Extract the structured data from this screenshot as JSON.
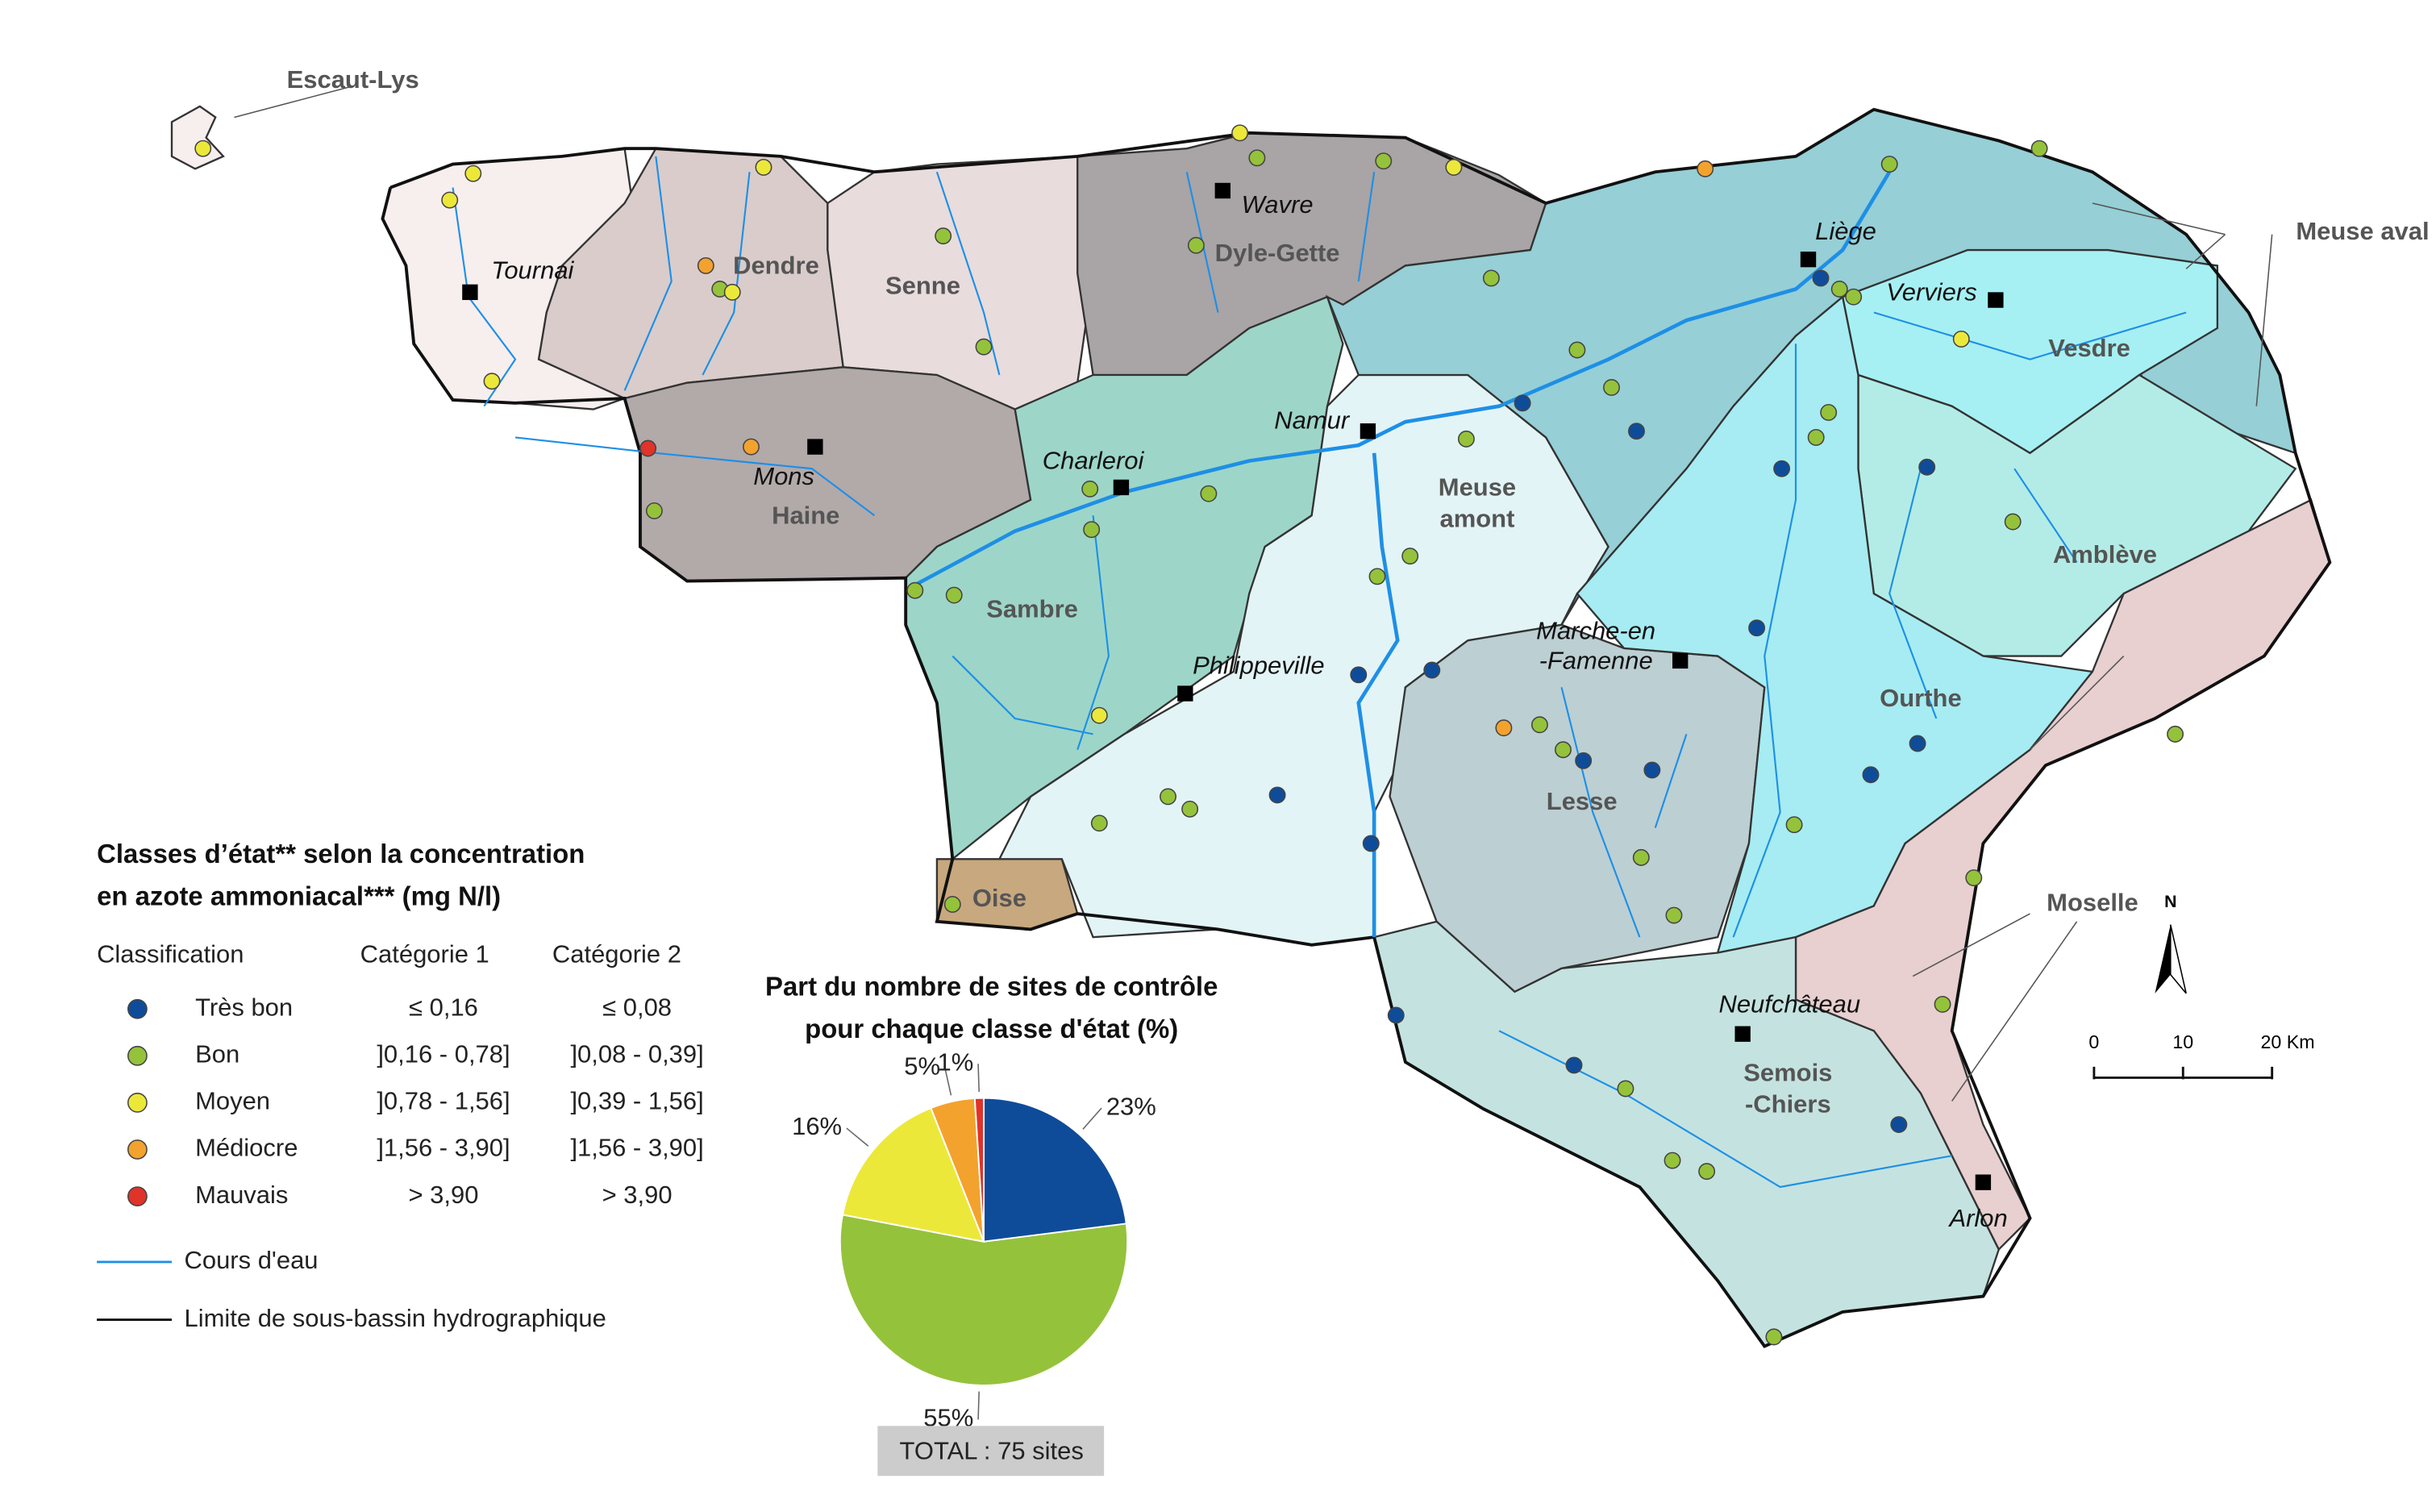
{
  "map": {
    "basins": [
      [
        "Escaut-Lys"
      ],
      [
        "Dendre"
      ],
      [
        "Senne"
      ],
      [
        "Dyle-Gette"
      ],
      [
        "Meuse aval"
      ],
      [
        "Vesdre"
      ],
      [
        "Amblève"
      ],
      [
        "Ourthe"
      ],
      [
        "Lesse"
      ],
      [
        "Meuse",
        "amont"
      ],
      [
        "Sambre"
      ],
      [
        "Haine"
      ],
      [
        "Oise"
      ],
      [
        "Semois",
        "-Chiers"
      ],
      [
        "Moselle"
      ]
    ],
    "cities": [
      [
        "Tournai"
      ],
      [
        "Wavre"
      ],
      [
        "Liège"
      ],
      [
        "Verviers"
      ],
      [
        "Namur"
      ],
      [
        "Charleroi"
      ],
      [
        "Mons"
      ],
      [
        "Philippeville"
      ],
      [
        "Marche-en",
        "-Famenne"
      ],
      [
        "Neufchâteau"
      ],
      [
        "Arlon"
      ]
    ]
  },
  "legend": {
    "title": [
      "Classes d’état** selon la concentration",
      "en azote ammoniacal*** (mg N/l)"
    ],
    "headers": [
      "Classification",
      "Catégorie 1",
      "Catégorie 2"
    ],
    "rows": [
      [
        "≤ 0,16",
        "≤ 0,08"
      ],
      [
        "]0,16 - 0,78]",
        "]0,08 - 0,39]"
      ],
      [
        "]0,78 - 1,56]",
        "]0,39 - 1,56]"
      ],
      [
        "]1,56 - 3,90]",
        "]1,56 - 3,90]"
      ],
      [
        "> 3,90",
        "> 3,90"
      ]
    ],
    "river": "Cours d'eau",
    "boundary": "Limite de sous-bassin hydrographique"
  },
  "scale_bar": {
    "labels": [
      "0",
      "10",
      "20 Km"
    ],
    "north": "N"
  },
  "chart_data": {
    "type": "pie",
    "title": [
      "Part du nombre de sites de contrôle",
      "pour chaque classe d'état (%)"
    ],
    "categories": [
      "Très bon",
      "Bon",
      "Moyen",
      "Médiocre",
      "Mauvais"
    ],
    "values": [
      23,
      55,
      16,
      5,
      1
    ],
    "value_labels": [
      "23%",
      "55%",
      "16%",
      "5%",
      "1%"
    ],
    "colors": [
      "#0e4c9a",
      "#95c23b",
      "#ece83a",
      "#f3a22e",
      "#e0332a"
    ],
    "total_label": "TOTAL : 75 sites"
  }
}
